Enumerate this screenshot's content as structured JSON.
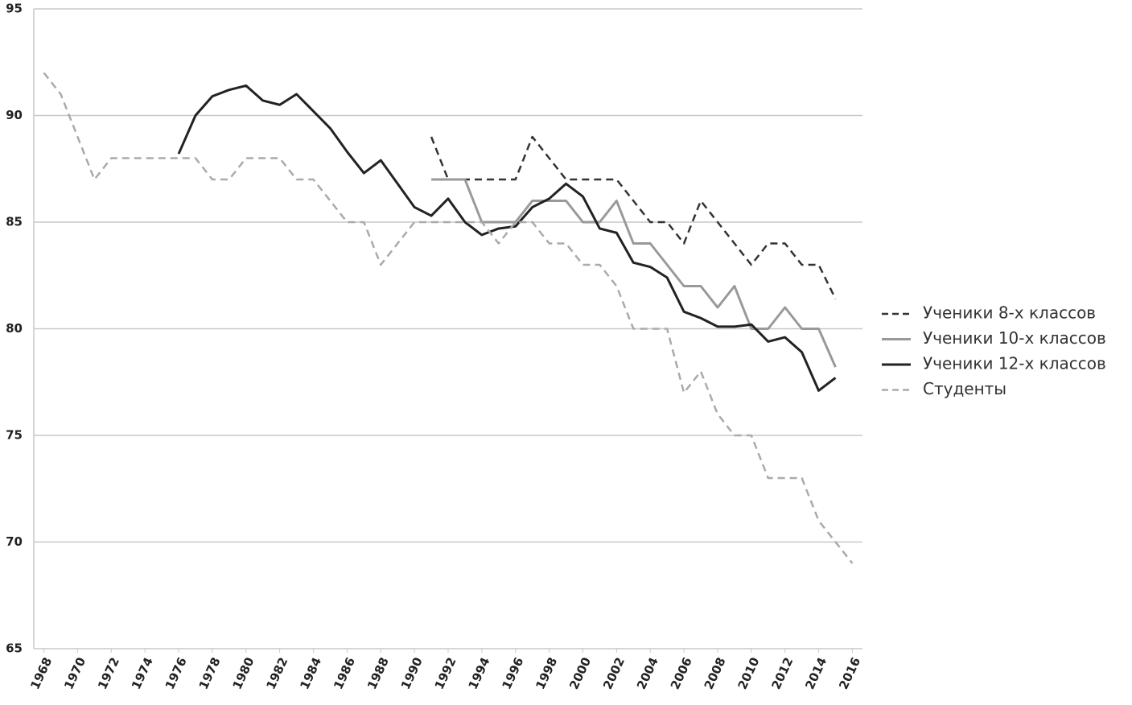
{
  "chart_data": {
    "type": "line",
    "x": [
      1968,
      1969,
      1970,
      1971,
      1972,
      1973,
      1974,
      1975,
      1976,
      1977,
      1978,
      1979,
      1980,
      1981,
      1982,
      1983,
      1984,
      1985,
      1986,
      1987,
      1988,
      1989,
      1990,
      1991,
      1992,
      1993,
      1994,
      1995,
      1996,
      1997,
      1998,
      1999,
      2000,
      2001,
      2002,
      2003,
      2004,
      2005,
      2006,
      2007,
      2008,
      2009,
      2010,
      2011,
      2012,
      2013,
      2014,
      2015,
      2016
    ],
    "series": [
      {
        "name": "Ученики 8-х классов",
        "color": "#333333",
        "dashed": true,
        "values": [
          null,
          null,
          null,
          null,
          null,
          null,
          null,
          null,
          null,
          null,
          null,
          null,
          null,
          null,
          null,
          null,
          null,
          null,
          null,
          null,
          null,
          null,
          null,
          89,
          87,
          87,
          87,
          87,
          87,
          89,
          88,
          87,
          87,
          87,
          87,
          86,
          85,
          85,
          84,
          86,
          85,
          84,
          83,
          84,
          84,
          83,
          83,
          81.4,
          null
        ]
      },
      {
        "name": "Ученики 10-х классов",
        "color": "#999999",
        "dashed": false,
        "values": [
          null,
          null,
          null,
          null,
          null,
          null,
          null,
          null,
          null,
          null,
          null,
          null,
          null,
          null,
          null,
          null,
          null,
          null,
          null,
          null,
          null,
          null,
          null,
          87,
          87,
          87,
          85,
          85,
          85,
          86,
          86,
          86,
          85,
          85,
          86,
          84,
          84,
          83,
          82,
          82,
          81,
          82,
          80,
          80,
          81,
          80,
          80,
          78.2,
          null
        ]
      },
      {
        "name": "Ученики 12-х классов",
        "color": "#222222",
        "dashed": false,
        "values": [
          null,
          null,
          null,
          null,
          null,
          null,
          null,
          null,
          88.2,
          90,
          90.9,
          91.2,
          91.4,
          90.7,
          90.5,
          91,
          90.2,
          89.4,
          88.3,
          87.3,
          87.9,
          86.8,
          85.7,
          85.3,
          86.1,
          85,
          84.4,
          84.7,
          84.8,
          85.7,
          86.1,
          86.8,
          86.2,
          84.7,
          84.5,
          83.1,
          82.9,
          82.4,
          80.8,
          80.5,
          80.1,
          80.1,
          80.2,
          79.4,
          79.6,
          78.9,
          77.1,
          77.7,
          null
        ]
      },
      {
        "name": "Студенты",
        "color": "#aaaaaa",
        "dashed": true,
        "values": [
          92,
          91,
          89,
          87,
          88,
          88,
          88,
          88,
          88,
          88,
          87,
          87,
          88,
          88,
          88,
          87,
          87,
          86,
          85,
          85,
          83,
          84,
          85,
          85,
          85,
          85,
          85,
          84,
          85,
          85,
          84,
          84,
          83,
          83,
          82,
          80,
          80,
          80,
          77,
          78,
          76,
          75,
          75,
          73,
          73,
          73,
          71,
          70,
          69
        ]
      }
    ],
    "xlim": [
      1967.4,
      2016.6
    ],
    "xticks": [
      1968,
      1970,
      1972,
      1974,
      1976,
      1978,
      1980,
      1982,
      1984,
      1986,
      1988,
      1990,
      1992,
      1994,
      1996,
      1998,
      2000,
      2002,
      2004,
      2006,
      2008,
      2010,
      2012,
      2014,
      2016
    ],
    "ylim": [
      65,
      95
    ],
    "yticks": [
      65,
      70,
      75,
      80,
      85,
      90,
      95
    ],
    "grid": true
  }
}
